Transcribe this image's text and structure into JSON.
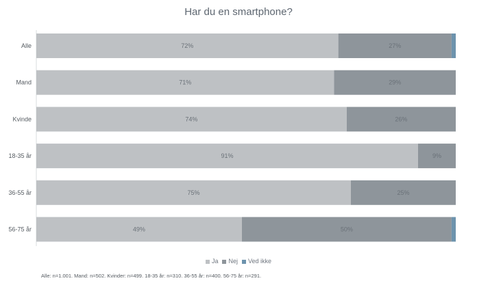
{
  "chart_data": {
    "type": "bar",
    "orientation": "horizontal",
    "stacked": true,
    "title": "Har du en smartphone?",
    "categories": [
      "Alle",
      "Mand",
      "Kvinde",
      "18-35 år",
      "36-55 år",
      "56-75 år"
    ],
    "series": [
      {
        "name": "Ja",
        "color": "#bec1c4",
        "values": [
          72,
          71,
          74,
          91,
          75,
          49
        ]
      },
      {
        "name": "Nej",
        "color": "#8e959b",
        "values": [
          27,
          29,
          26,
          9,
          25,
          50
        ]
      },
      {
        "name": "Ved ikke",
        "color": "#6d93ad",
        "values": [
          1,
          0.4,
          0.4,
          0,
          0.4,
          1
        ]
      }
    ],
    "xlim": [
      0,
      100
    ],
    "grid": false,
    "legend_position": "bottom",
    "footnote": "Alle: n=1.001. Mand: n=502. Kvinder: n=499. 18-35 år: n=310. 36-55 år: n=400. 56-75 år: n=291."
  }
}
